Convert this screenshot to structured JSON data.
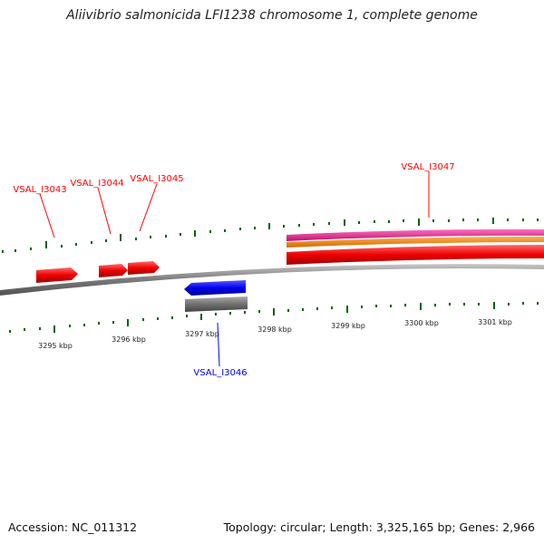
{
  "title": "Aliivibrio salmonicida LFI1238 chromosome 1, complete genome",
  "footer": {
    "accession": "Accession: NC_011312",
    "summary": "Topology: circular; Length: 3,325,165 bp; Genes: 2,966"
  },
  "colors": {
    "forward_gene": "#ff0000",
    "reverse_gene": "#0000ff",
    "tick": "#006400",
    "backbone": "#808080",
    "feature_magenta": "#e0208a",
    "feature_orange": "#ff8c00",
    "reverse_feature_grey": "#707070"
  },
  "ticks": [
    {
      "label": "3295 kbp",
      "kbp": 3295
    },
    {
      "label": "3296 kbp",
      "kbp": 3296
    },
    {
      "label": "3297 kbp",
      "kbp": 3297
    },
    {
      "label": "3298 kbp",
      "kbp": 3298
    },
    {
      "label": "3299 kbp",
      "kbp": 3299
    },
    {
      "label": "3300 kbp",
      "kbp": 3300
    },
    {
      "label": "3301 kbp",
      "kbp": 3301
    }
  ],
  "genes": [
    {
      "name": "VSAL_I3043",
      "strand": "+"
    },
    {
      "name": "VSAL_I3044",
      "strand": "+"
    },
    {
      "name": "VSAL_I3045",
      "strand": "+"
    },
    {
      "name": "VSAL_I3046",
      "strand": "-"
    },
    {
      "name": "VSAL_I3047",
      "strand": "+"
    }
  ]
}
